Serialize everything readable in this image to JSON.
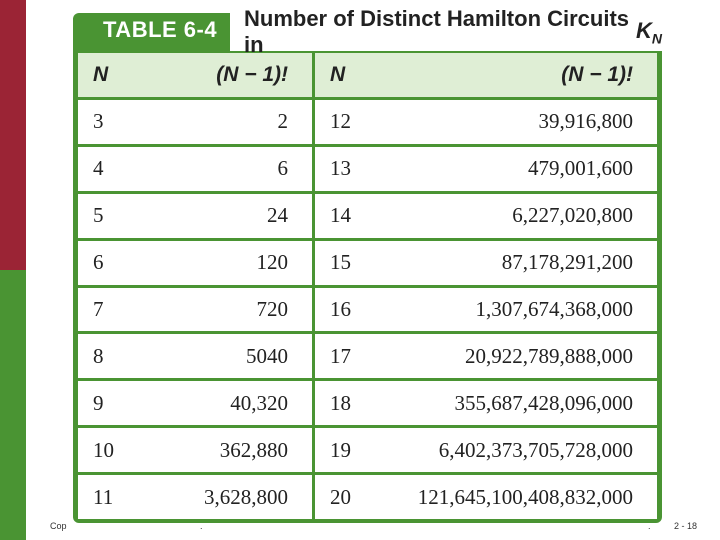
{
  "table": {
    "label": "TABLE 6-4",
    "title": "Number of Distinct Hamilton Circuits in",
    "title_k": "K",
    "title_sub": "N",
    "headers": {
      "n": "N",
      "factorial": "(N − 1)!"
    },
    "rows": [
      {
        "n1": "3",
        "f1": "2",
        "n2": "12",
        "f2": "39,916,800"
      },
      {
        "n1": "4",
        "f1": "6",
        "n2": "13",
        "f2": "479,001,600"
      },
      {
        "n1": "5",
        "f1": "24",
        "n2": "14",
        "f2": "6,227,020,800"
      },
      {
        "n1": "6",
        "f1": "120",
        "n2": "15",
        "f2": "87,178,291,200"
      },
      {
        "n1": "7",
        "f1": "720",
        "n2": "16",
        "f2": "1,307,674,368,000"
      },
      {
        "n1": "8",
        "f1": "5040",
        "n2": "17",
        "f2": "20,922,789,888,000"
      },
      {
        "n1": "9",
        "f1": "40,320",
        "n2": "18",
        "f2": "355,687,428,096,000"
      },
      {
        "n1": "10",
        "f1": "362,880",
        "n2": "19",
        "f2": "6,402,373,705,728,000"
      },
      {
        "n1": "11",
        "f1": "3,628,800",
        "n2": "20",
        "f2": "121,645,100,408,832,000"
      }
    ]
  },
  "footer": {
    "left": "Cop",
    "mid": ".",
    "dot": ".",
    "right": "2 - 18"
  },
  "colors": {
    "green": "#4a9433",
    "red": "#9b2435",
    "header_bg": "#dfeed5"
  }
}
